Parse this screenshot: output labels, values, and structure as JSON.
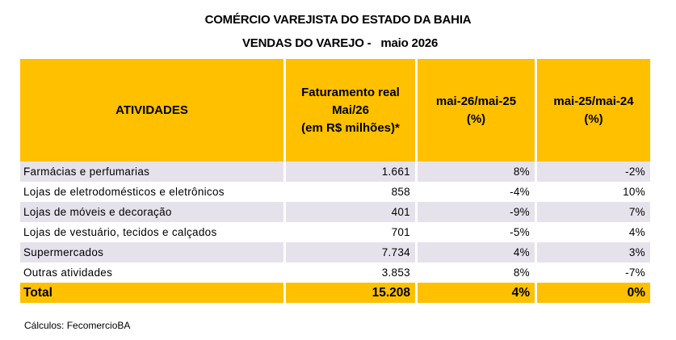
{
  "title_line1": "COMÉRCIO VAREJISTA DO ESTADO DA BAHIA",
  "title_line2": "VENDAS DO VAREJO -   maio 2026",
  "header": {
    "col_atividades": "ATIVIDADES",
    "col_faturamento_l1": "Faturamento real",
    "col_faturamento_l2": "Mai/26",
    "col_faturamento_l3": "(em R$ milhões)*",
    "col_var1_l1": "mai-26/mai-25",
    "col_var1_l2": "(%)",
    "col_var2_l1": "mai-25/mai-24",
    "col_var2_l2": "(%)"
  },
  "rows": [
    {
      "atividade": "Farmácias e perfumarias",
      "faturamento": "1.661",
      "var1": "8%",
      "var2": "-2%"
    },
    {
      "atividade": "Lojas de eletrodomésticos e eletrônicos",
      "faturamento": "858",
      "var1": "-4%",
      "var2": "10%"
    },
    {
      "atividade": "Lojas de móveis e decoração",
      "faturamento": "401",
      "var1": "-9%",
      "var2": "7%"
    },
    {
      "atividade": "Lojas de vestuário, tecidos e calçados",
      "faturamento": "701",
      "var1": "-5%",
      "var2": "4%"
    },
    {
      "atividade": "Supermercados",
      "faturamento": "7.734",
      "var1": "4%",
      "var2": "3%"
    },
    {
      "atividade": "Outras atividades",
      "faturamento": "3.853",
      "var1": "8%",
      "var2": "-7%"
    }
  ],
  "total": {
    "label": "Total",
    "faturamento": "15.208",
    "var1": "4%",
    "var2": "0%"
  },
  "note_calculos": "Cálculos: FecomercioBA",
  "colors": {
    "header_bg": "#FFC000",
    "row_shade": "#E6E2EC"
  }
}
